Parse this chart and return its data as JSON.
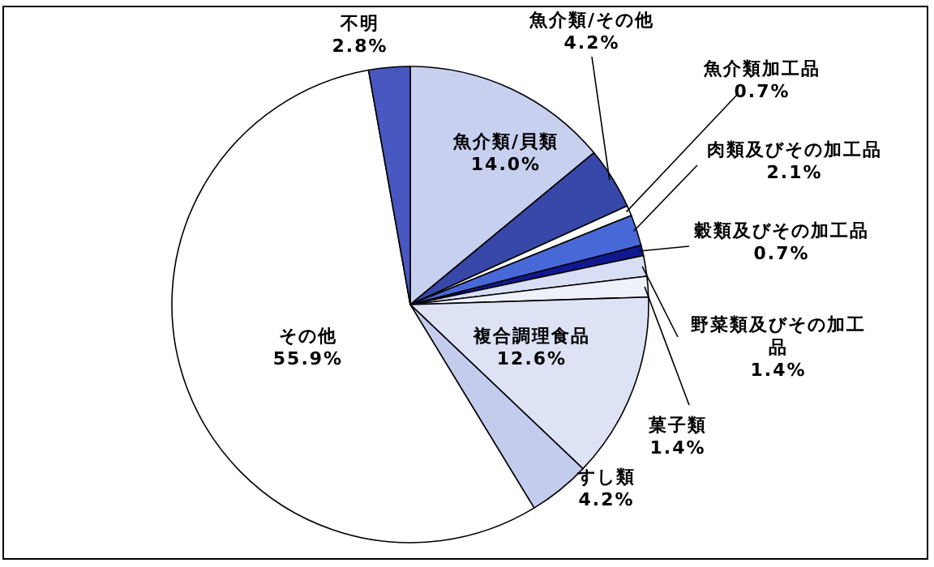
{
  "chart_data": {
    "type": "pie",
    "categories": [
      "魚介類/貝類",
      "魚介類/その他",
      "魚介類加工品",
      "肉類及びその加工品",
      "穀類及びその加工品",
      "野菜類及びその加工品",
      "菓子類",
      "複合調理食品",
      "すし類",
      "その他",
      "不明"
    ],
    "values": [
      14.0,
      4.2,
      0.7,
      2.1,
      0.7,
      1.4,
      1.4,
      12.6,
      4.2,
      55.9,
      2.8
    ],
    "value_labels": [
      "14.0%",
      "4.2%",
      "0.7%",
      "2.1%",
      "0.7%",
      "1.4%",
      "1.4%",
      "12.6%",
      "4.2%",
      "55.9%",
      "2.8%"
    ],
    "colors": [
      "#c8d0f0",
      "#3848a8",
      "#ffffff",
      "#4868d8",
      "#101890",
      "#d8def4",
      "#eef0fa",
      "#dde2f5",
      "#c4ccee",
      "#ffffff",
      "#4858c0"
    ]
  }
}
